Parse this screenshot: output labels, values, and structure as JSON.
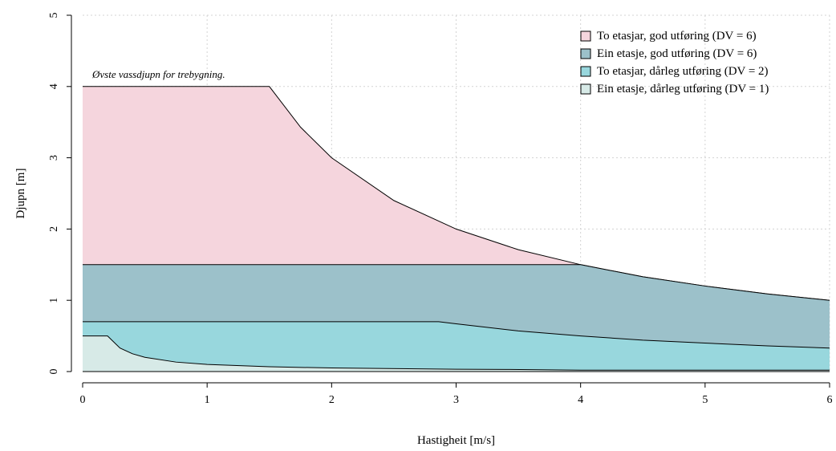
{
  "chart_data": {
    "type": "area",
    "xlabel": "Hastigheit [m/s]",
    "ylabel": "Djupn [m]",
    "xlim": [
      0,
      6
    ],
    "ylim": [
      0,
      5
    ],
    "xticks": [
      "0",
      "1",
      "2",
      "3",
      "4",
      "5",
      "6"
    ],
    "yticks": [
      "0",
      "1",
      "2",
      "3",
      "4",
      "5"
    ],
    "grid": true,
    "legend_position": "top-right",
    "annotation": "Øvste vassdjupn for trebygning.",
    "series": [
      {
        "name": "To etasjar, god utføring (DV = 6)",
        "color": "#f5d5dd",
        "x": [
          0,
          1.5,
          1.75,
          2.0,
          2.5,
          3.0,
          3.5,
          4.0,
          4.5,
          5.0,
          5.5,
          6.0
        ],
        "y": [
          4.0,
          4.0,
          3.43,
          3.0,
          2.4,
          2.0,
          1.71,
          1.5,
          1.33,
          1.2,
          1.09,
          1.0
        ]
      },
      {
        "name": "Ein etasje, god utføring (DV = 6)",
        "color": "#9cc1ca",
        "x": [
          0,
          4.0,
          4.5,
          5.0,
          5.5,
          6.0
        ],
        "y": [
          1.5,
          1.5,
          1.33,
          1.2,
          1.09,
          1.0
        ]
      },
      {
        "name": "To etasjar, dårleg utføring (DV = 2)",
        "color": "#98d7dd",
        "x": [
          0,
          2.86,
          3.0,
          3.5,
          4.0,
          4.5,
          5.0,
          5.5,
          6.0
        ],
        "y": [
          0.7,
          0.7,
          0.67,
          0.57,
          0.5,
          0.44,
          0.4,
          0.36,
          0.33
        ]
      },
      {
        "name": "Ein etasje, dårleg utføring (DV = 1)",
        "color": "#d7eae7",
        "x": [
          0,
          0.2,
          0.3,
          0.4,
          0.5,
          0.75,
          1.0,
          1.5,
          2.0,
          3.0,
          3.4,
          4.0,
          6.0
        ],
        "y": [
          0.5,
          0.5,
          0.33,
          0.25,
          0.2,
          0.133,
          0.1,
          0.067,
          0.05,
          0.033,
          0.03,
          0.02,
          0.02
        ]
      }
    ]
  }
}
